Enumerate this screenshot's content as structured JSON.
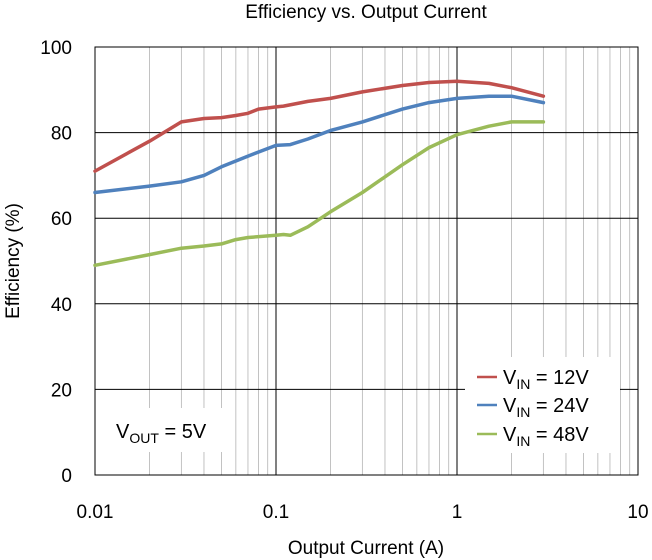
{
  "chart_data": {
    "type": "line",
    "title": "Efficiency vs. Output Current",
    "xlabel": "Output Current (A)",
    "ylabel": "Efficiency (%)",
    "x_scale": "log",
    "xlim": [
      0.01,
      10
    ],
    "ylim": [
      0,
      100
    ],
    "x_ticks": [
      {
        "value": 0.01,
        "label": "0.01"
      },
      {
        "value": 0.1,
        "label": "0.1"
      },
      {
        "value": 1,
        "label": "1"
      },
      {
        "value": 10,
        "label": "10"
      }
    ],
    "y_ticks": [
      {
        "value": 0,
        "label": "0"
      },
      {
        "value": 20,
        "label": "20"
      },
      {
        "value": 40,
        "label": "40"
      },
      {
        "value": 60,
        "label": "60"
      },
      {
        "value": 80,
        "label": "80"
      },
      {
        "value": 100,
        "label": "100"
      }
    ],
    "grid": true,
    "annotation": {
      "main": "V",
      "sub": "OUT",
      "rest": " = 5V"
    },
    "legend_position": "bottom-right",
    "series": [
      {
        "name": "VIN = 12V",
        "legend": {
          "main": "V",
          "sub": "IN",
          "rest": " = 12V"
        },
        "color": "#c0504d",
        "x": [
          0.01,
          0.02,
          0.03,
          0.04,
          0.05,
          0.06,
          0.07,
          0.08,
          0.1,
          0.11,
          0.15,
          0.2,
          0.3,
          0.5,
          0.7,
          1.0,
          1.5,
          2.0,
          3.0
        ],
        "y": [
          71,
          78,
          82.5,
          83.3,
          83.5,
          84,
          84.5,
          85.5,
          86,
          86.2,
          87.3,
          88,
          89.5,
          91,
          91.7,
          92,
          91.5,
          90.5,
          88.5
        ]
      },
      {
        "name": "VIN = 24V",
        "legend": {
          "main": "V",
          "sub": "IN",
          "rest": " = 24V"
        },
        "color": "#4f81bd",
        "x": [
          0.01,
          0.02,
          0.03,
          0.04,
          0.05,
          0.07,
          0.1,
          0.12,
          0.15,
          0.2,
          0.3,
          0.5,
          0.7,
          1.0,
          1.5,
          2.0,
          3.0
        ],
        "y": [
          66,
          67.5,
          68.5,
          70,
          72,
          74.5,
          77,
          77.2,
          78.5,
          80.5,
          82.5,
          85.5,
          87,
          88,
          88.5,
          88.5,
          87
        ]
      },
      {
        "name": "VIN = 48V",
        "legend": {
          "main": "V",
          "sub": "IN",
          "rest": " = 48V"
        },
        "color": "#9bbb59",
        "x": [
          0.01,
          0.02,
          0.03,
          0.04,
          0.05,
          0.06,
          0.07,
          0.1,
          0.11,
          0.12,
          0.15,
          0.2,
          0.3,
          0.5,
          0.7,
          1.0,
          1.5,
          2.0,
          3.0
        ],
        "y": [
          49,
          51.5,
          53,
          53.5,
          54,
          55,
          55.5,
          56,
          56.2,
          56,
          58,
          61.5,
          66,
          72.5,
          76.5,
          79.5,
          81.5,
          82.5,
          82.5
        ]
      }
    ]
  }
}
